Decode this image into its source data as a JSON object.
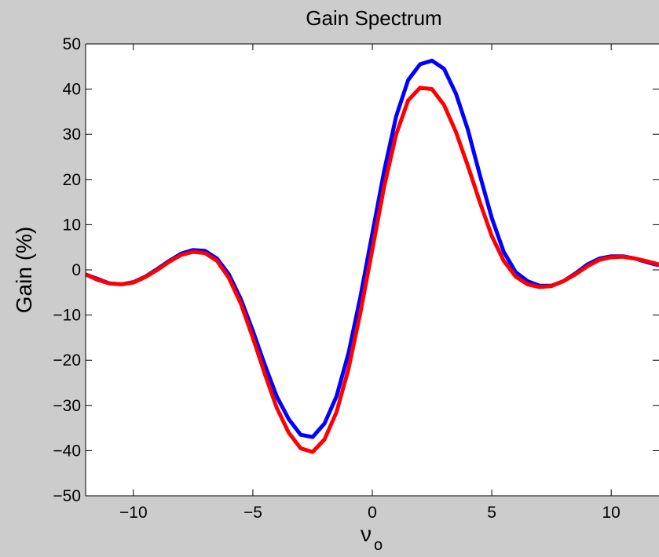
{
  "chart_data": {
    "type": "line",
    "title": "Gain Spectrum",
    "xlabel": "ν",
    "xlabel_subscript": "o",
    "ylabel": "Gain (%)",
    "xlim": [
      -12,
      12
    ],
    "ylim": [
      -50,
      50
    ],
    "x_ticks": [
      -10,
      -5,
      0,
      5,
      10
    ],
    "x_tick_labels": [
      "−10",
      "−5",
      "0",
      "5",
      "10"
    ],
    "y_ticks": [
      -50,
      -40,
      -30,
      -20,
      -10,
      0,
      10,
      20,
      30,
      40,
      50
    ],
    "y_tick_labels": [
      "−50",
      "−40",
      "−30",
      "−20",
      "−10",
      "0",
      "10",
      "20",
      "30",
      "40",
      "50"
    ],
    "grid": false,
    "legend": "none",
    "series": [
      {
        "color": "#0000ff",
        "x": [
          -12,
          -11.5,
          -11,
          -10.5,
          -10,
          -9.5,
          -9,
          -8.5,
          -8,
          -7.5,
          -7,
          -6.5,
          -6,
          -5.5,
          -5,
          -4.5,
          -4,
          -3.5,
          -3,
          -2.5,
          -2,
          -1.5,
          -1,
          -0.5,
          0,
          0.5,
          1,
          1.5,
          2,
          2.5,
          3,
          3.5,
          4,
          4.5,
          5,
          5.5,
          6,
          6.5,
          7,
          7.5,
          8,
          8.5,
          9,
          9.5,
          10,
          10.5,
          11,
          11.5,
          12
        ],
        "y": [
          -1.0,
          -2.0,
          -3.0,
          -3.2,
          -2.7,
          -1.5,
          0.2,
          2.0,
          3.6,
          4.4,
          4.2,
          2.5,
          -1.0,
          -6.5,
          -13.5,
          -21.0,
          -28.0,
          -33.0,
          -36.5,
          -37.0,
          -34.0,
          -28.0,
          -18.5,
          -6.0,
          8.0,
          22.0,
          34.0,
          42.0,
          45.5,
          46.3,
          44.5,
          39.0,
          31.0,
          21.0,
          11.5,
          4.0,
          -0.5,
          -2.5,
          -3.5,
          -3.5,
          -2.5,
          -0.8,
          1.2,
          2.5,
          3.0,
          3.0,
          2.5,
          1.7,
          1.0
        ]
      },
      {
        "color": "#ff0000",
        "x": [
          -12,
          -11.5,
          -11,
          -10.5,
          -10,
          -9.5,
          -9,
          -8.5,
          -8,
          -7.5,
          -7,
          -6.5,
          -6,
          -5.5,
          -5,
          -4.5,
          -4,
          -3.5,
          -3,
          -2.5,
          -2,
          -1.5,
          -1,
          -0.5,
          0,
          0.5,
          1,
          1.5,
          2,
          2.5,
          3,
          3.5,
          4,
          4.5,
          5,
          5.5,
          6,
          6.5,
          7,
          7.5,
          8,
          8.5,
          9,
          9.5,
          10,
          10.5,
          11,
          11.5,
          12
        ],
        "y": [
          -1.0,
          -2.2,
          -3.0,
          -3.2,
          -2.8,
          -1.6,
          0.0,
          1.8,
          3.3,
          4.0,
          3.7,
          2.0,
          -1.8,
          -7.5,
          -15.0,
          -23.0,
          -30.5,
          -36.0,
          -39.5,
          -40.3,
          -37.5,
          -31.5,
          -22.0,
          -9.5,
          4.5,
          18.5,
          30.0,
          37.5,
          40.3,
          40.0,
          36.5,
          30.5,
          23.0,
          15.0,
          7.5,
          2.0,
          -1.5,
          -3.2,
          -3.8,
          -3.6,
          -2.5,
          -1.0,
          0.8,
          2.2,
          2.8,
          2.9,
          2.5,
          1.9,
          1.2
        ]
      }
    ]
  }
}
